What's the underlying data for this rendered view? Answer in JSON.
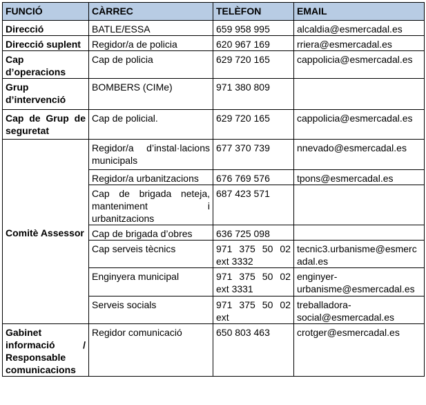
{
  "headers": [
    "FUNCIÓ",
    "CÀRREC",
    "TELÈFON",
    "EMAIL"
  ],
  "header_color": "#b8cce4",
  "groups": [
    {
      "funcio": "Direcció",
      "rows": [
        {
          "carrec": "BATLE/ESSA",
          "telefon": "659 958 995",
          "email": "alcaldia@esmercadal.es"
        }
      ]
    },
    {
      "funcio": "Direcció suplent",
      "rows": [
        {
          "carrec": "Regidor/a de policia",
          "telefon": "620 967 169",
          "email": "rriera@esmercadal.es"
        }
      ]
    },
    {
      "funcio": "Cap d’operacions",
      "rows": [
        {
          "carrec": "Cap de policia",
          "telefon": "629 720 165",
          "email": "cappolicia@esmercadal.es"
        }
      ]
    },
    {
      "funcio": "Grup d’intervenció",
      "rows": [
        {
          "carrec": "BOMBERS (CIMe)",
          "telefon": "971 380 809",
          "email": ""
        }
      ]
    },
    {
      "funcio": "Cap de Grup de seguretat",
      "rows": [
        {
          "carrec": "Cap de policial.",
          "telefon": "629 720 165",
          "email": "cappolicia@esmercadal.es"
        }
      ]
    },
    {
      "funcio": "Comitè Assessor",
      "rows": [
        {
          "carrec": "Regidor/a d’instal·lacions municipals",
          "telefon": "677 370 739",
          "email": "nnevado@esmercadal.es"
        },
        {
          "carrec": "Regidor/a urbanitzacions",
          "telefon": "676 769 576",
          "email": "tpons@esmercadal.es"
        },
        {
          "carrec": "Cap de brigada neteja, manteniment i urbanitzacions",
          "telefon": "687 423 571",
          "email": ""
        },
        {
          "carrec": "Cap de brigada d’obres",
          "telefon": "636 725 098",
          "email": ""
        },
        {
          "carrec": "Cap serveis tècnics",
          "telefon": "971 375 50 02 ext 3332",
          "email": "tecnic3.urbanisme@esmercadal.es"
        },
        {
          "carrec": "Enginyera municipal",
          "telefon": "971 375 50 02 ext 3331",
          "email": "enginyer-urbanisme@esmercadal.es"
        },
        {
          "carrec": "Serveis socials",
          "telefon": "971 375 50 02 ext",
          "email": "treballadora-social@esmercadal.es"
        }
      ]
    },
    {
      "funcio": "Gabinet informació / Responsable comunicacions",
      "rows": [
        {
          "carrec": "Regidor comunicació",
          "telefon": "650 803 463",
          "email": "crotger@esmercadal.es"
        }
      ]
    }
  ]
}
